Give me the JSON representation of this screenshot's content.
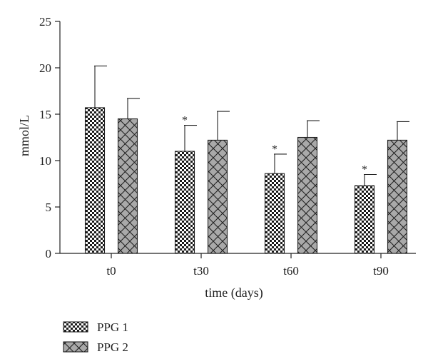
{
  "chart_data": {
    "type": "bar",
    "title": "",
    "xlabel": "time (days)",
    "ylabel": "mmol/L",
    "ylim": [
      0,
      25
    ],
    "yticks": [
      0,
      5,
      10,
      15,
      20,
      25
    ],
    "categories": [
      "t0",
      "t30",
      "t60",
      "t90"
    ],
    "series": [
      {
        "name": "PPG 1",
        "values": [
          15.7,
          11.0,
          8.6,
          7.3
        ],
        "error": [
          4.5,
          2.8,
          2.1,
          1.2
        ],
        "significance": [
          "",
          "*",
          "*",
          "*"
        ],
        "pattern": "checkerboard"
      },
      {
        "name": "PPG 2",
        "values": [
          14.5,
          12.2,
          12.5,
          12.2
        ],
        "error": [
          2.2,
          3.1,
          1.8,
          2.0
        ],
        "significance": [
          "",
          "",
          "",
          ""
        ],
        "pattern": "crosshatch-gray"
      }
    ],
    "grid": false,
    "legend": "bottom-left"
  }
}
